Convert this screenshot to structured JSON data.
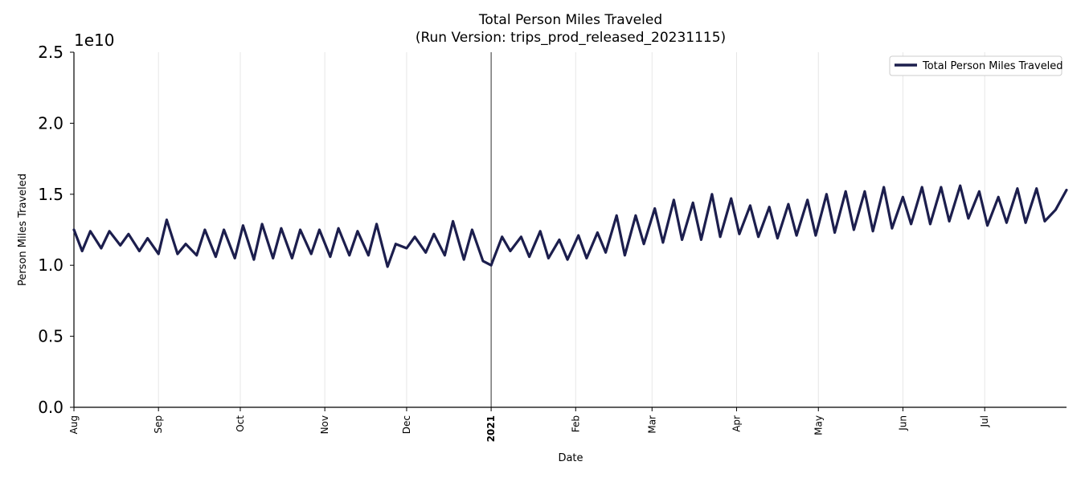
{
  "chart_data": {
    "type": "line",
    "title": "Total Person Miles Traveled",
    "subtitle": "(Run Version: trips_prod_released_20231115)",
    "xlabel": "Date",
    "ylabel": "Person Miles Traveled",
    "y_offset_label": "1e10",
    "ylim": [
      0.0,
      2.5
    ],
    "yticks": [
      "0.0",
      "0.5",
      "1.0",
      "1.5",
      "2.0",
      "2.5"
    ],
    "xlim": [
      "2020-08-01",
      "2021-07-31"
    ],
    "xticks": [
      {
        "label": "Aug",
        "date": "2020-08-01",
        "bold": false
      },
      {
        "label": "Sep",
        "date": "2020-09-01",
        "bold": false
      },
      {
        "label": "Oct",
        "date": "2020-10-01",
        "bold": false
      },
      {
        "label": "Nov",
        "date": "2020-11-01",
        "bold": false
      },
      {
        "label": "Dec",
        "date": "2020-12-01",
        "bold": false
      },
      {
        "label": "2021",
        "date": "2021-01-01",
        "bold": true
      },
      {
        "label": "Feb",
        "date": "2021-02-01",
        "bold": false
      },
      {
        "label": "Mar",
        "date": "2021-03-01",
        "bold": false
      },
      {
        "label": "Apr",
        "date": "2021-04-01",
        "bold": false
      },
      {
        "label": "May",
        "date": "2021-05-01",
        "bold": false
      },
      {
        "label": "Jun",
        "date": "2021-06-01",
        "bold": false
      },
      {
        "label": "Jul",
        "date": "2021-07-01",
        "bold": false
      }
    ],
    "grid": "vertical",
    "marker_line_date": "2021-01-01",
    "legend_position": "top-right",
    "series": [
      {
        "name": "Total Person Miles Traveled",
        "color": "#1c1e4d",
        "x": [
          "2020-08-01",
          "2020-08-04",
          "2020-08-07",
          "2020-08-11",
          "2020-08-14",
          "2020-08-18",
          "2020-08-21",
          "2020-08-25",
          "2020-08-28",
          "2020-09-01",
          "2020-09-04",
          "2020-09-08",
          "2020-09-11",
          "2020-09-15",
          "2020-09-18",
          "2020-09-22",
          "2020-09-25",
          "2020-09-29",
          "2020-10-02",
          "2020-10-06",
          "2020-10-09",
          "2020-10-13",
          "2020-10-16",
          "2020-10-20",
          "2020-10-23",
          "2020-10-27",
          "2020-10-30",
          "2020-11-03",
          "2020-11-06",
          "2020-11-10",
          "2020-11-13",
          "2020-11-17",
          "2020-11-20",
          "2020-11-24",
          "2020-11-27",
          "2020-12-01",
          "2020-12-04",
          "2020-12-08",
          "2020-12-11",
          "2020-12-15",
          "2020-12-18",
          "2020-12-22",
          "2020-12-25",
          "2020-12-29",
          "2021-01-01",
          "2021-01-05",
          "2021-01-08",
          "2021-01-12",
          "2021-01-15",
          "2021-01-19",
          "2021-01-22",
          "2021-01-26",
          "2021-01-29",
          "2021-02-02",
          "2021-02-05",
          "2021-02-09",
          "2021-02-12",
          "2021-02-16",
          "2021-02-19",
          "2021-02-23",
          "2021-02-26",
          "2021-03-02",
          "2021-03-05",
          "2021-03-09",
          "2021-03-12",
          "2021-03-16",
          "2021-03-19",
          "2021-03-23",
          "2021-03-26",
          "2021-03-30",
          "2021-04-02",
          "2021-04-06",
          "2021-04-09",
          "2021-04-13",
          "2021-04-16",
          "2021-04-20",
          "2021-04-23",
          "2021-04-27",
          "2021-04-30",
          "2021-05-04",
          "2021-05-07",
          "2021-05-11",
          "2021-05-14",
          "2021-05-18",
          "2021-05-21",
          "2021-05-25",
          "2021-05-28",
          "2021-06-01",
          "2021-06-04",
          "2021-06-08",
          "2021-06-11",
          "2021-06-15",
          "2021-06-18",
          "2021-06-22",
          "2021-06-25",
          "2021-06-29",
          "2021-07-02",
          "2021-07-06",
          "2021-07-09",
          "2021-07-13",
          "2021-07-16",
          "2021-07-20",
          "2021-07-23",
          "2021-07-27",
          "2021-07-31"
        ],
        "y": [
          1.25,
          1.1,
          1.24,
          1.12,
          1.24,
          1.14,
          1.22,
          1.1,
          1.19,
          1.08,
          1.32,
          1.08,
          1.15,
          1.07,
          1.25,
          1.06,
          1.25,
          1.05,
          1.28,
          1.04,
          1.29,
          1.05,
          1.26,
          1.05,
          1.25,
          1.08,
          1.25,
          1.06,
          1.26,
          1.07,
          1.24,
          1.07,
          1.29,
          0.99,
          1.15,
          1.12,
          1.2,
          1.09,
          1.22,
          1.07,
          1.31,
          1.04,
          1.25,
          1.03,
          1.0,
          1.2,
          1.1,
          1.2,
          1.06,
          1.24,
          1.05,
          1.18,
          1.04,
          1.21,
          1.05,
          1.23,
          1.09,
          1.35,
          1.07,
          1.35,
          1.15,
          1.4,
          1.16,
          1.46,
          1.18,
          1.44,
          1.18,
          1.5,
          1.2,
          1.47,
          1.22,
          1.42,
          1.2,
          1.41,
          1.19,
          1.43,
          1.21,
          1.46,
          1.21,
          1.5,
          1.23,
          1.52,
          1.25,
          1.52,
          1.24,
          1.55,
          1.26,
          1.48,
          1.29,
          1.55,
          1.29,
          1.55,
          1.31,
          1.56,
          1.33,
          1.52,
          1.28,
          1.48,
          1.3,
          1.54,
          1.3,
          1.54,
          1.31,
          1.39,
          1.53
        ]
      }
    ]
  }
}
